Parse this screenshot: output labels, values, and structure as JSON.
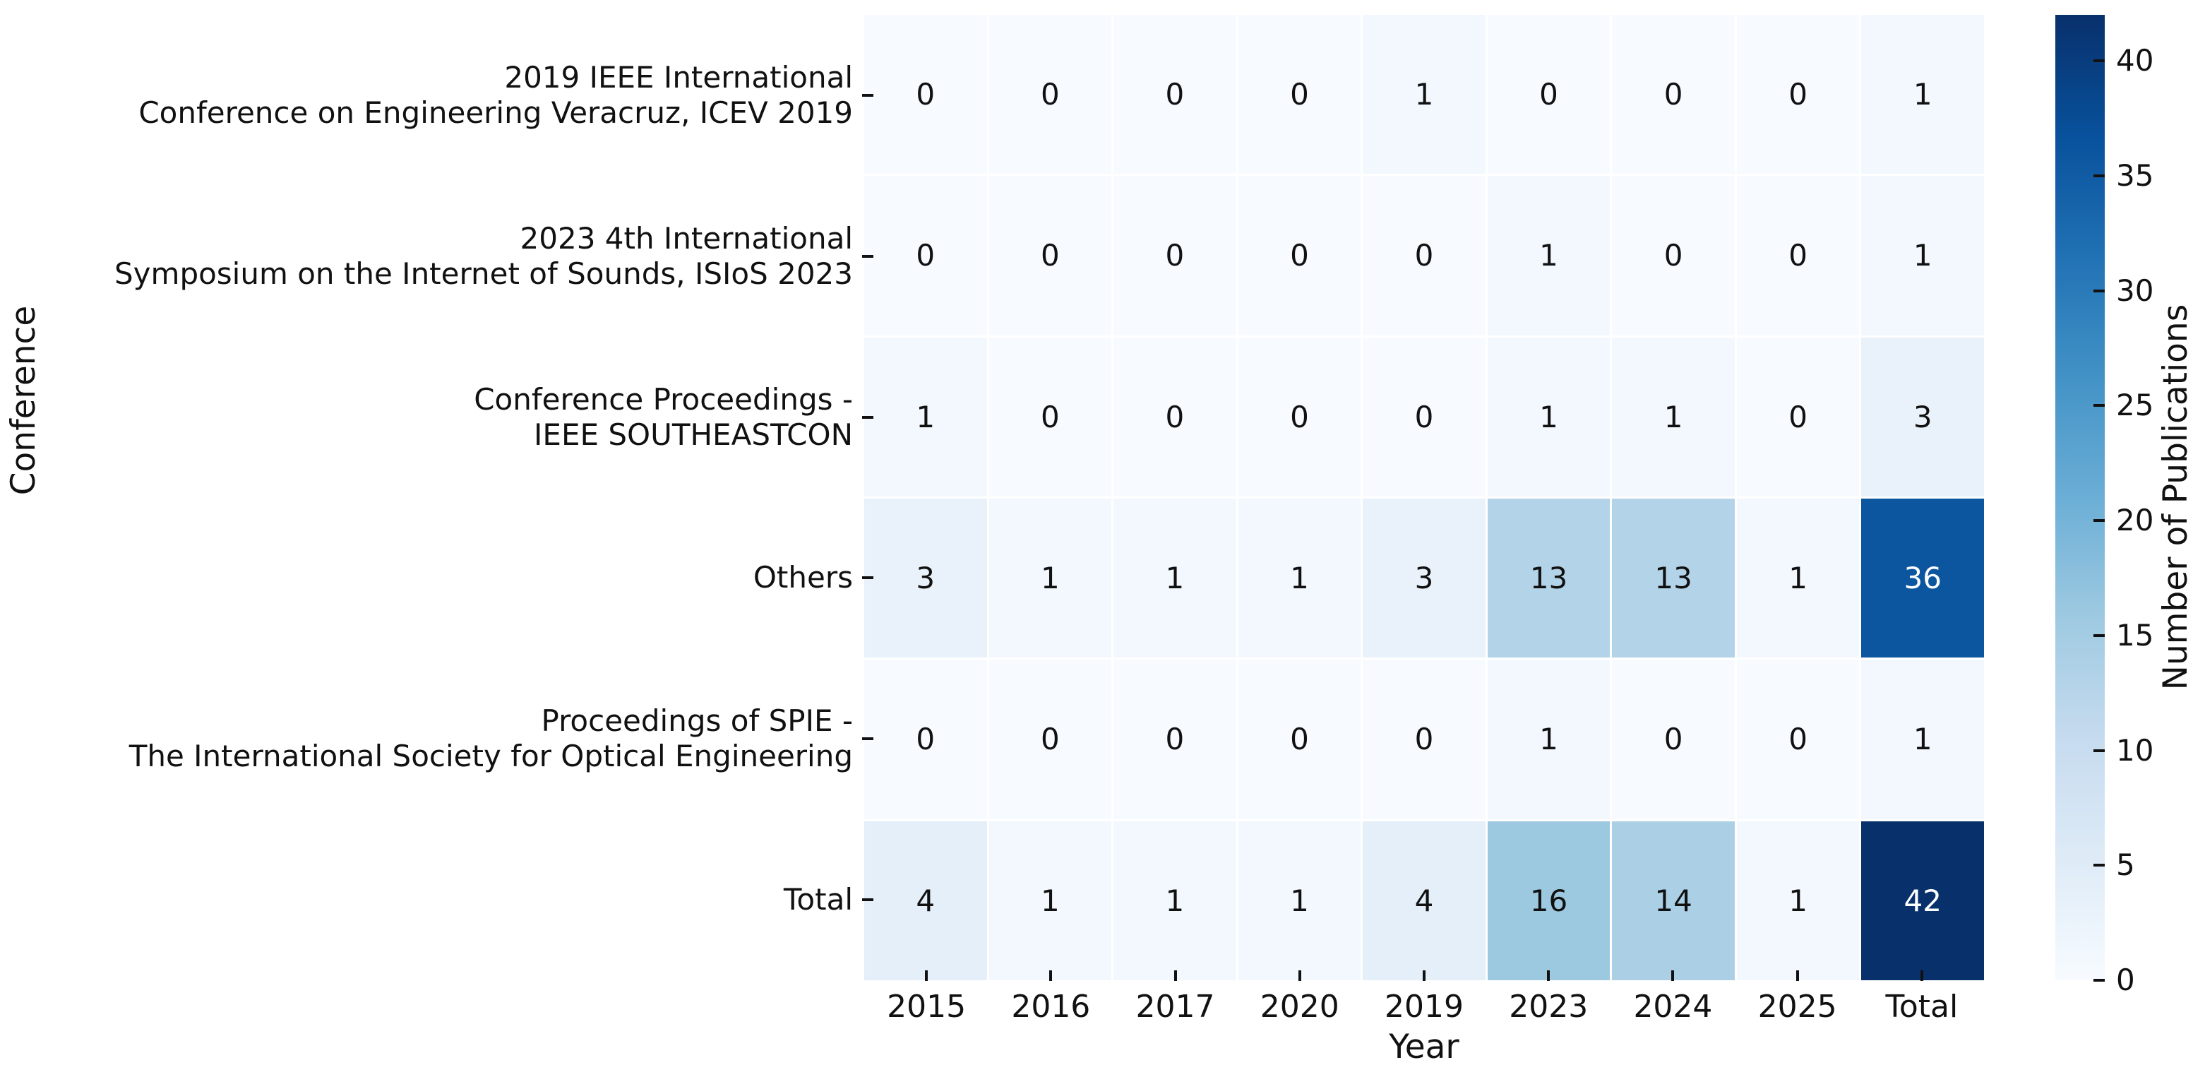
{
  "figure": {
    "x_axis_title": "Year",
    "y_axis_title": "Conference",
    "colorbar_title": "Number of Publications"
  },
  "chart_data": {
    "type": "heatmap",
    "title": "",
    "xlabel": "Year",
    "ylabel": "Conference",
    "colormap": "Blues",
    "vmin": 0,
    "vmax": 42,
    "grid": "white gaps between cells",
    "legend_position": "colorbar-right",
    "columns": [
      "2015",
      "2016",
      "2017",
      "2020",
      "2019",
      "2023",
      "2024",
      "2025",
      "Total"
    ],
    "rows": [
      "2019 IEEE International\nConference on Engineering Veracruz, ICEV 2019",
      "2023 4th International\nSymposium on the Internet of Sounds, ISIoS 2023",
      "Conference Proceedings -\nIEEE SOUTHEASTCON",
      "Others",
      "Proceedings of SPIE -\nThe International Society for Optical Engineering",
      "Total"
    ],
    "values": [
      [
        0,
        0,
        0,
        0,
        1,
        0,
        0,
        0,
        1
      ],
      [
        0,
        0,
        0,
        0,
        0,
        1,
        0,
        0,
        1
      ],
      [
        1,
        0,
        0,
        0,
        0,
        1,
        1,
        0,
        3
      ],
      [
        3,
        1,
        1,
        1,
        3,
        13,
        13,
        1,
        36
      ],
      [
        0,
        0,
        0,
        0,
        0,
        1,
        0,
        0,
        1
      ],
      [
        4,
        1,
        1,
        1,
        4,
        16,
        14,
        1,
        42
      ]
    ],
    "colorbar": {
      "label": "Number of Publications",
      "ticks": [
        0,
        5,
        10,
        15,
        20,
        25,
        30,
        35,
        40
      ]
    },
    "colormap_stops": [
      "#f7fbff",
      "#deebf7",
      "#c6dbef",
      "#9ecae1",
      "#6baed6",
      "#4292c6",
      "#2171b5",
      "#08519c",
      "#08306b"
    ],
    "annotation_text_colors": {
      "dark_cells": "#ffffff",
      "light_cells": "#111111"
    }
  }
}
